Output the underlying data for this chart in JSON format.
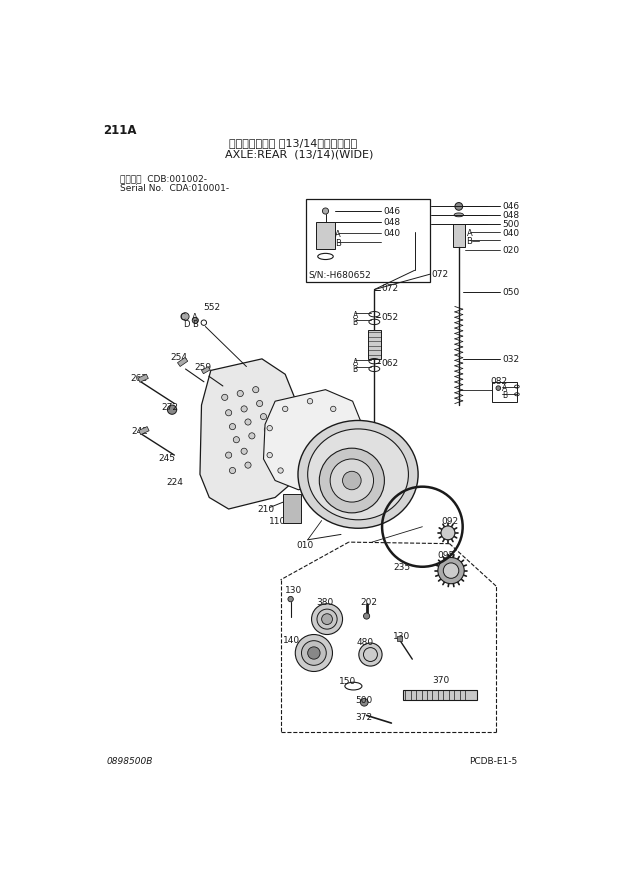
{
  "title_japanese": "アクスル：リヤ （13/14）（ワイド）",
  "title_english": "AXLE:REAR  (13/14)(WIDE)",
  "page_id": "211A",
  "serial_line1": "適用号機  CDB:001002-",
  "serial_line2": "Serial No.  CDA:010001-",
  "footer_left": "0898500B",
  "footer_right": "PCDB-E1-5",
  "sn_label": "S/N:-H680652",
  "bg": "#ffffff",
  "lc": "#1a1a1a"
}
